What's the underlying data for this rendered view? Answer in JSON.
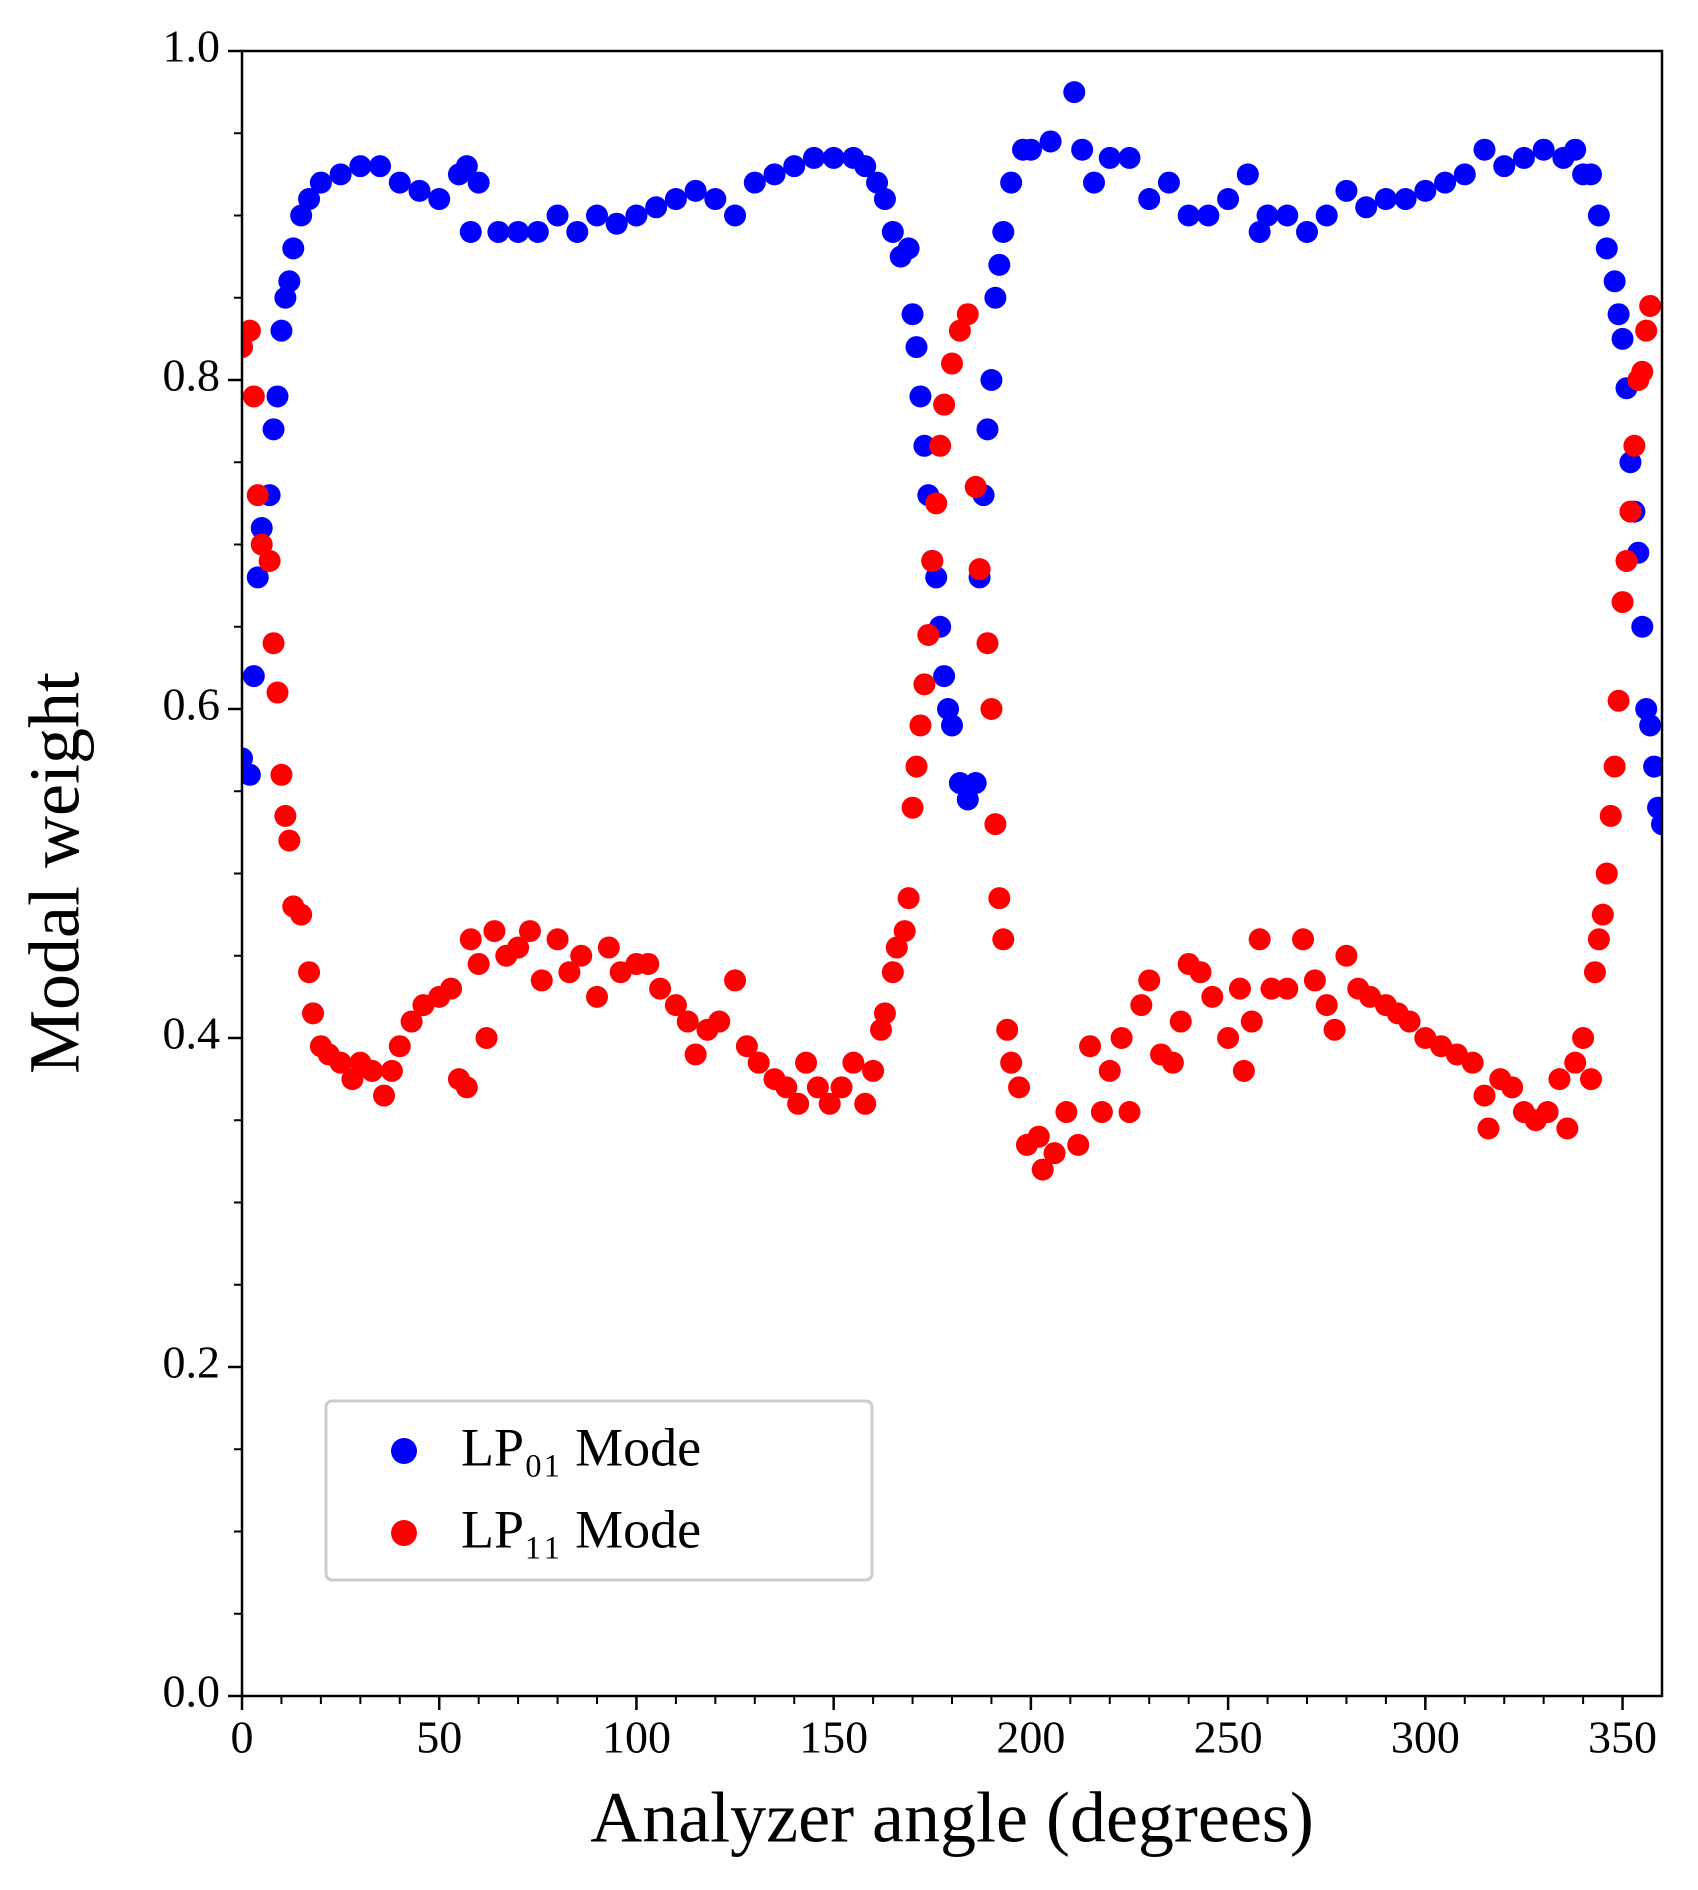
{
  "chart_data": {
    "type": "scatter",
    "xlabel": "Analyzer angle (degrees)",
    "ylabel": "Modal weight",
    "xlim": [
      0,
      360
    ],
    "ylim": [
      0,
      1
    ],
    "xticks": [
      0,
      50,
      100,
      150,
      200,
      250,
      300,
      350
    ],
    "yticks": [
      {
        "value": 0,
        "label": "0.0"
      },
      0.2,
      0.4,
      0.6,
      0.8,
      {
        "value": 1,
        "label": "1.0"
      }
    ],
    "xminorticks": [
      10,
      20,
      30,
      40,
      60,
      70,
      80,
      90,
      110,
      120,
      130,
      140,
      160,
      170,
      180,
      190,
      210,
      220,
      230,
      240,
      260,
      270,
      280,
      290,
      310,
      320,
      330,
      340
    ],
    "yminorticks": [
      0.05,
      0.1,
      0.15,
      0.25,
      0.3,
      0.35,
      0.45,
      0.5,
      0.55,
      0.65,
      0.7,
      0.75,
      0.85,
      0.9,
      0.95
    ],
    "legend": "lower left",
    "series": [
      {
        "name": "LP₀₁ Mode",
        "color": "#0000ff",
        "x": [
          0,
          2,
          3,
          4,
          5,
          7,
          8,
          9,
          10,
          11,
          12,
          13,
          15,
          17,
          20,
          25,
          30,
          35,
          40,
          45,
          50,
          55,
          57,
          58,
          60,
          65,
          70,
          75,
          80,
          85,
          90,
          95,
          100,
          105,
          110,
          115,
          120,
          125,
          130,
          135,
          140,
          145,
          150,
          155,
          158,
          161,
          163,
          165,
          167,
          169,
          170,
          171,
          172,
          173,
          174,
          175,
          176,
          177,
          178,
          179,
          180,
          182,
          184,
          186,
          187,
          188,
          189,
          190,
          191,
          192,
          193,
          195,
          198,
          200,
          205,
          211,
          213,
          216,
          220,
          225,
          230,
          235,
          240,
          245,
          250,
          255,
          258,
          260,
          265,
          270,
          275,
          280,
          285,
          290,
          295,
          300,
          305,
          310,
          315,
          320,
          325,
          330,
          335,
          338,
          340,
          342,
          344,
          346,
          348,
          349,
          350,
          351,
          352,
          353,
          354,
          355,
          356,
          357,
          358,
          359,
          360
        ],
        "values": [
          0.57,
          0.56,
          0.62,
          0.68,
          0.71,
          0.73,
          0.77,
          0.79,
          0.83,
          0.85,
          0.86,
          0.88,
          0.9,
          0.91,
          0.92,
          0.925,
          0.93,
          0.93,
          0.92,
          0.915,
          0.91,
          0.925,
          0.93,
          0.89,
          0.92,
          0.89,
          0.89,
          0.89,
          0.9,
          0.89,
          0.9,
          0.895,
          0.9,
          0.905,
          0.91,
          0.915,
          0.91,
          0.9,
          0.92,
          0.925,
          0.93,
          0.935,
          0.935,
          0.935,
          0.93,
          0.92,
          0.91,
          0.89,
          0.875,
          0.88,
          0.84,
          0.82,
          0.79,
          0.76,
          0.73,
          0.69,
          0.68,
          0.65,
          0.62,
          0.6,
          0.59,
          0.555,
          0.545,
          0.555,
          0.68,
          0.73,
          0.77,
          0.8,
          0.85,
          0.87,
          0.89,
          0.92,
          0.94,
          0.94,
          0.945,
          0.975,
          0.94,
          0.92,
          0.935,
          0.935,
          0.91,
          0.92,
          0.9,
          0.9,
          0.91,
          0.925,
          0.89,
          0.9,
          0.9,
          0.89,
          0.9,
          0.915,
          0.905,
          0.91,
          0.91,
          0.915,
          0.92,
          0.925,
          0.94,
          0.93,
          0.935,
          0.94,
          0.935,
          0.94,
          0.925,
          0.925,
          0.9,
          0.88,
          0.86,
          0.84,
          0.825,
          0.795,
          0.75,
          0.72,
          0.695,
          0.65,
          0.6,
          0.59,
          0.565,
          0.54,
          0.53
        ]
      },
      {
        "name": "LP₁₁ Mode",
        "color": "#ff0000",
        "x": [
          0,
          2,
          3,
          4,
          5,
          7,
          8,
          9,
          10,
          11,
          12,
          13,
          15,
          17,
          18,
          20,
          22,
          25,
          28,
          30,
          33,
          36,
          38,
          40,
          43,
          46,
          50,
          53,
          55,
          57,
          58,
          60,
          62,
          64,
          67,
          70,
          73,
          76,
          80,
          83,
          86,
          90,
          93,
          96,
          100,
          103,
          106,
          110,
          113,
          115,
          118,
          121,
          125,
          128,
          131,
          135,
          138,
          141,
          143,
          146,
          149,
          152,
          155,
          158,
          160,
          162,
          163,
          165,
          166,
          168,
          169,
          170,
          171,
          172,
          173,
          174,
          175,
          176,
          177,
          178,
          180,
          182,
          184,
          186,
          187,
          189,
          190,
          191,
          192,
          193,
          194,
          195,
          197,
          199,
          202,
          203,
          206,
          209,
          212,
          215,
          218,
          220,
          223,
          225,
          228,
          230,
          233,
          236,
          238,
          240,
          243,
          246,
          250,
          253,
          254,
          256,
          258,
          261,
          265,
          269,
          272,
          275,
          277,
          280,
          283,
          286,
          290,
          293,
          296,
          300,
          304,
          308,
          312,
          315,
          316,
          319,
          322,
          325,
          328,
          331,
          334,
          336,
          338,
          340,
          342,
          343,
          344,
          345,
          346,
          347,
          348,
          349,
          350,
          351,
          352,
          353,
          354,
          355,
          356,
          357
        ],
        "values": [
          0.82,
          0.83,
          0.79,
          0.73,
          0.7,
          0.69,
          0.64,
          0.61,
          0.56,
          0.535,
          0.52,
          0.48,
          0.475,
          0.44,
          0.415,
          0.395,
          0.39,
          0.385,
          0.375,
          0.385,
          0.38,
          0.365,
          0.38,
          0.395,
          0.41,
          0.42,
          0.425,
          0.43,
          0.375,
          0.37,
          0.46,
          0.445,
          0.4,
          0.465,
          0.45,
          0.455,
          0.465,
          0.435,
          0.46,
          0.44,
          0.45,
          0.425,
          0.455,
          0.44,
          0.445,
          0.445,
          0.43,
          0.42,
          0.41,
          0.39,
          0.405,
          0.41,
          0.435,
          0.395,
          0.385,
          0.375,
          0.37,
          0.36,
          0.385,
          0.37,
          0.36,
          0.37,
          0.385,
          0.36,
          0.38,
          0.405,
          0.415,
          0.44,
          0.455,
          0.465,
          0.485,
          0.54,
          0.565,
          0.59,
          0.615,
          0.645,
          0.69,
          0.725,
          0.76,
          0.785,
          0.81,
          0.83,
          0.84,
          0.735,
          0.685,
          0.64,
          0.6,
          0.53,
          0.485,
          0.46,
          0.405,
          0.385,
          0.37,
          0.335,
          0.34,
          0.32,
          0.33,
          0.355,
          0.335,
          0.395,
          0.355,
          0.38,
          0.4,
          0.355,
          0.42,
          0.435,
          0.39,
          0.385,
          0.41,
          0.445,
          0.44,
          0.425,
          0.4,
          0.43,
          0.38,
          0.41,
          0.46,
          0.43,
          0.43,
          0.46,
          0.435,
          0.42,
          0.405,
          0.45,
          0.43,
          0.425,
          0.42,
          0.415,
          0.41,
          0.4,
          0.395,
          0.39,
          0.385,
          0.365,
          0.345,
          0.375,
          0.37,
          0.355,
          0.35,
          0.355,
          0.375,
          0.345,
          0.385,
          0.4,
          0.375,
          0.44,
          0.46,
          0.475,
          0.5,
          0.535,
          0.565,
          0.605,
          0.665,
          0.69,
          0.72,
          0.76,
          0.8,
          0.805,
          0.83,
          0.845
        ]
      }
    ]
  }
}
